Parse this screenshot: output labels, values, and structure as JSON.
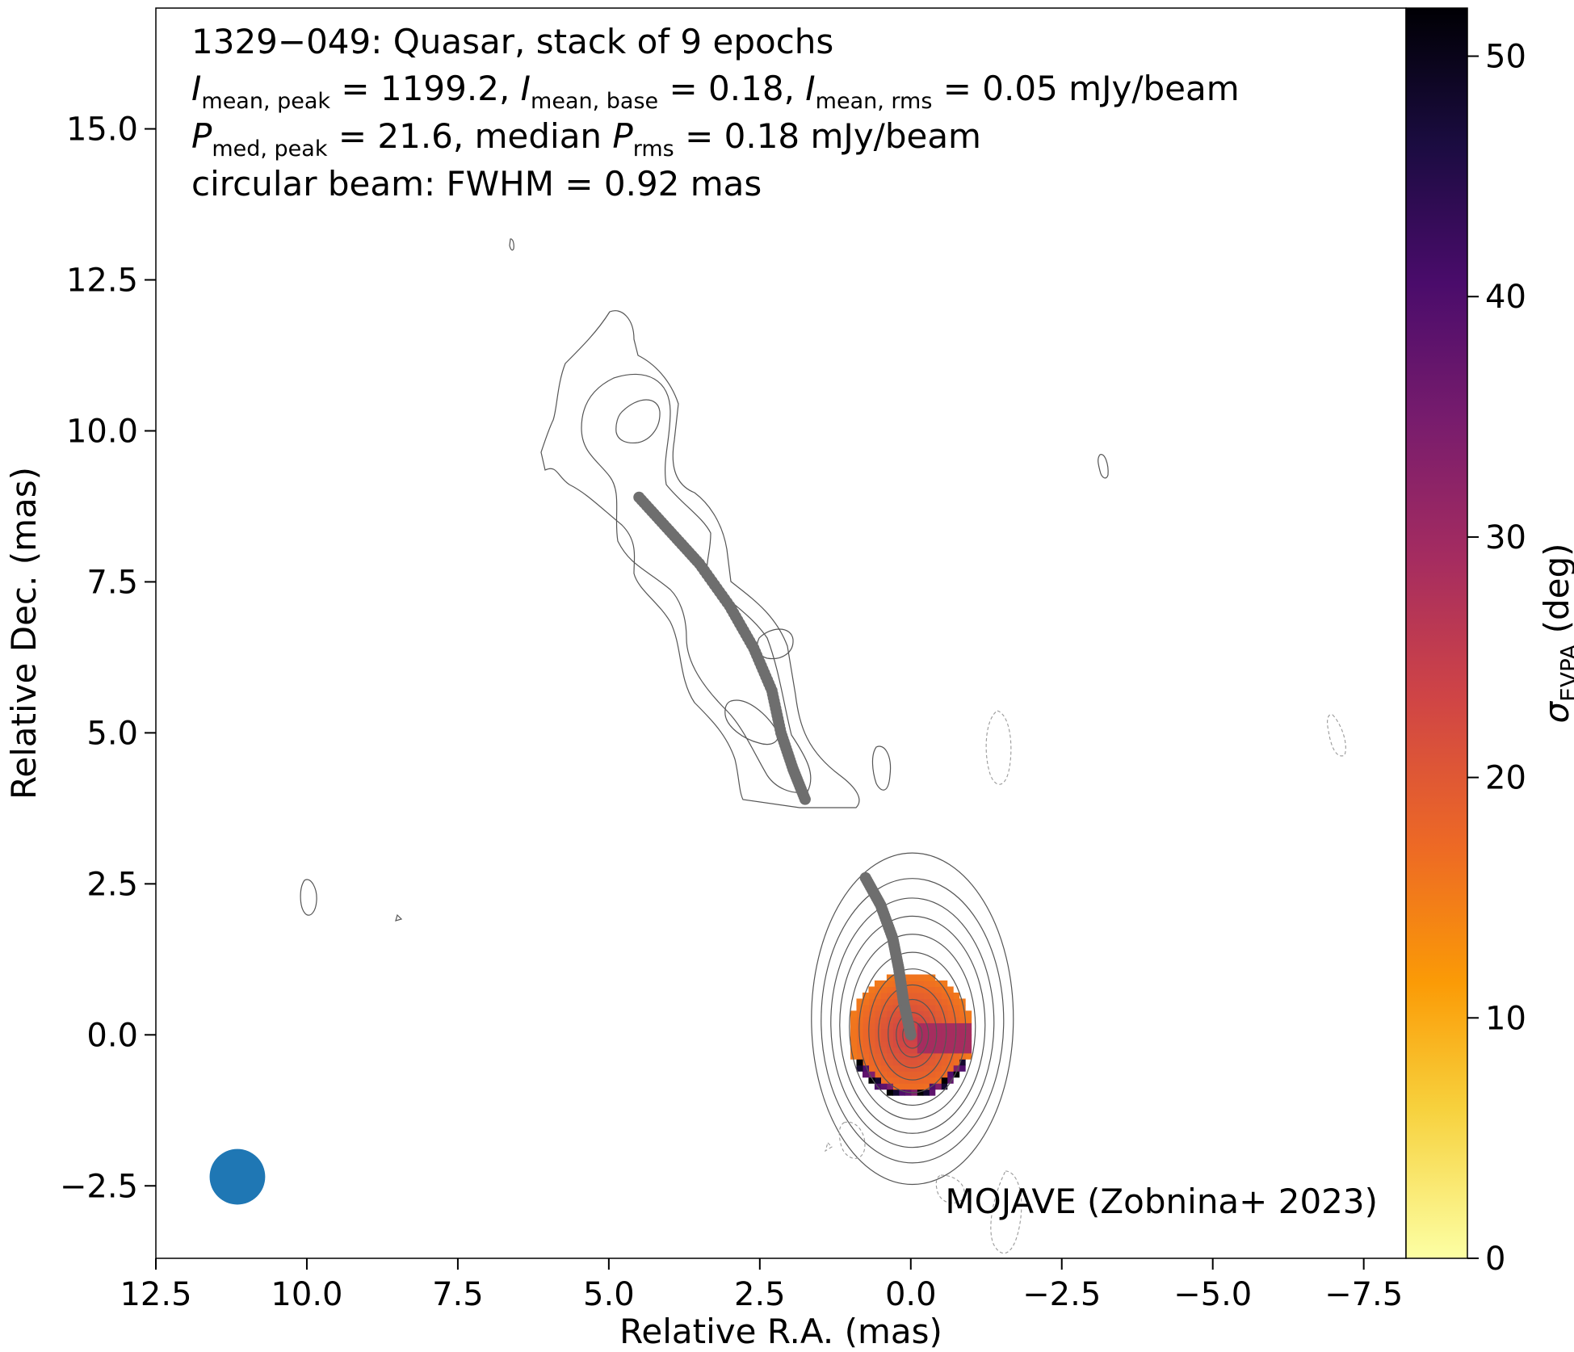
{
  "chart_data": {
    "type": "heatmap",
    "title_lines": [
      "1329−049: Quasar, stack of 9 epochs",
      "I_mean,peak = 1199.2, I_mean,base = 0.18, I_mean,rms = 0.05 mJy/beam",
      "P_med,peak = 21.6, median P_rms = 0.18 mJy/beam",
      "circular beam: FWHM = 0.92 mas"
    ],
    "title_parts": {
      "i_peak_value": "1199.2",
      "i_base_value": "0.18",
      "i_rms_value": "0.05",
      "p_peak_value": "21.6",
      "p_rms_value": "0.18",
      "unit": "mJy/beam",
      "beam_fwhm": "0.92 mas",
      "source": "1329−049: Quasar, stack of 9 epochs",
      "beam_line": "circular beam: FWHM = 0.92 mas"
    },
    "xlabel": "Relative R.A. (mas)",
    "ylabel": "Relative Dec. (mas)",
    "colorbar_label": "σ_EVPA (deg)",
    "colormap": "inferno_r",
    "xlim": [
      12.5,
      -8.2
    ],
    "ylim": [
      -3.7,
      17.0
    ],
    "x_ticks": [
      "12.5",
      "10.0",
      "7.5",
      "5.0",
      "2.5",
      "0.0",
      "−2.5",
      "−5.0",
      "−7.5"
    ],
    "x_tick_values": [
      12.5,
      10.0,
      7.5,
      5.0,
      2.5,
      0.0,
      -2.5,
      -5.0,
      -7.5
    ],
    "y_ticks": [
      "−2.5",
      "0.0",
      "2.5",
      "5.0",
      "7.5",
      "10.0",
      "12.5",
      "15.0"
    ],
    "y_tick_values": [
      -2.5,
      0.0,
      2.5,
      5.0,
      7.5,
      10.0,
      12.5,
      15.0
    ],
    "colorbar_range": [
      0,
      52
    ],
    "colorbar_ticks": [
      "0",
      "10",
      "20",
      "30",
      "40",
      "50"
    ],
    "colorbar_tick_values": [
      0,
      10,
      20,
      30,
      40,
      50
    ],
    "credit": "MOJAVE (Zobnina+ 2023)",
    "beam": {
      "x": 11.15,
      "y": -2.35,
      "fwhm": 0.92,
      "color": "#1f77b4"
    },
    "ridge_line": {
      "color": "#6e6e6e",
      "segments": [
        [
          [
            4.5,
            8.9
          ],
          [
            4.0,
            8.35
          ],
          [
            3.5,
            7.8
          ],
          [
            3.0,
            7.1
          ],
          [
            2.6,
            6.4
          ],
          [
            2.3,
            5.7
          ],
          [
            2.15,
            5.0
          ],
          [
            1.95,
            4.4
          ],
          [
            1.75,
            3.9
          ]
        ],
        [
          [
            0.75,
            2.6
          ],
          [
            0.5,
            2.15
          ],
          [
            0.3,
            1.6
          ],
          [
            0.2,
            1.1
          ],
          [
            0.12,
            0.55
          ],
          [
            0.0,
            0.0
          ]
        ]
      ]
    },
    "core_sigma_map": {
      "center": [
        0.0,
        0.0
      ],
      "radius_mas": 1.05,
      "outer_value_deg": 15,
      "inner_value_deg": 26,
      "pixel_mas": 0.1,
      "edge_values_deg": [
        40,
        48,
        52,
        34,
        38
      ]
    }
  }
}
